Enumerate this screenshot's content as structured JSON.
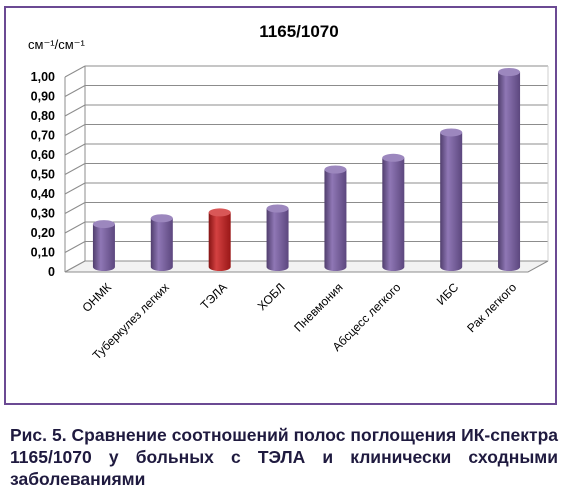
{
  "chart_data": {
    "type": "bar",
    "title": "1165/1070",
    "ylabel": "см⁻¹/см⁻¹",
    "xlabel": "",
    "categories": [
      "ОНМК",
      "Туберкулез легких",
      "ТЭЛА",
      "ХОБЛ",
      "Пневмония",
      "Абсцесс легкого",
      "ИБС",
      "Рак легкого"
    ],
    "values": [
      0.22,
      0.25,
      0.28,
      0.3,
      0.5,
      0.56,
      0.69,
      1.0
    ],
    "ylim": [
      0,
      1.0
    ],
    "yticks": [
      "0",
      "0,10",
      "0,20",
      "0,30",
      "0,40",
      "0,50",
      "0,60",
      "0,70",
      "0,80",
      "0,90",
      "1,00"
    ],
    "grid": true,
    "bar_colors": [
      "#7b5fa8",
      "#7b5fa8",
      "#cc1f1f",
      "#7b5fa8",
      "#7b5fa8",
      "#7b5fa8",
      "#7b5fa8",
      "#7b5fa8"
    ],
    "frame_color": "#6b4a93"
  },
  "caption": "Рис. 5. Сравнение соотношений полос поглощения ИК-спектра 1165/1070 у больных с ТЭЛА и клинически сходными заболеваниями"
}
